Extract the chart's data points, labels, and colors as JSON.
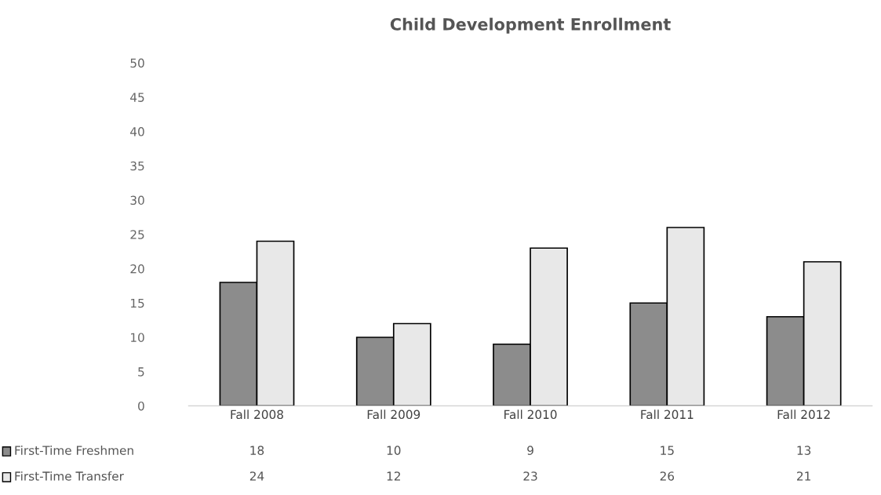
{
  "chart_data": {
    "type": "bar",
    "title": "Child Development Enrollment",
    "categories": [
      "Fall 2008",
      "Fall 2009",
      "Fall 2010",
      "Fall 2011",
      "Fall 2012"
    ],
    "series": [
      {
        "name": "First-Time Freshmen",
        "color": "#8c8c8c",
        "values": [
          18,
          10,
          9,
          15,
          13
        ]
      },
      {
        "name": "First-Time Transfer",
        "color": "#e8e8e8",
        "values": [
          24,
          12,
          23,
          26,
          21
        ]
      }
    ],
    "ylim": [
      0,
      50
    ],
    "yticks": [
      0,
      5,
      10,
      15,
      20,
      25,
      30,
      35,
      40,
      45,
      50
    ],
    "data_labels": true,
    "legend": "bottom",
    "grid": false
  }
}
